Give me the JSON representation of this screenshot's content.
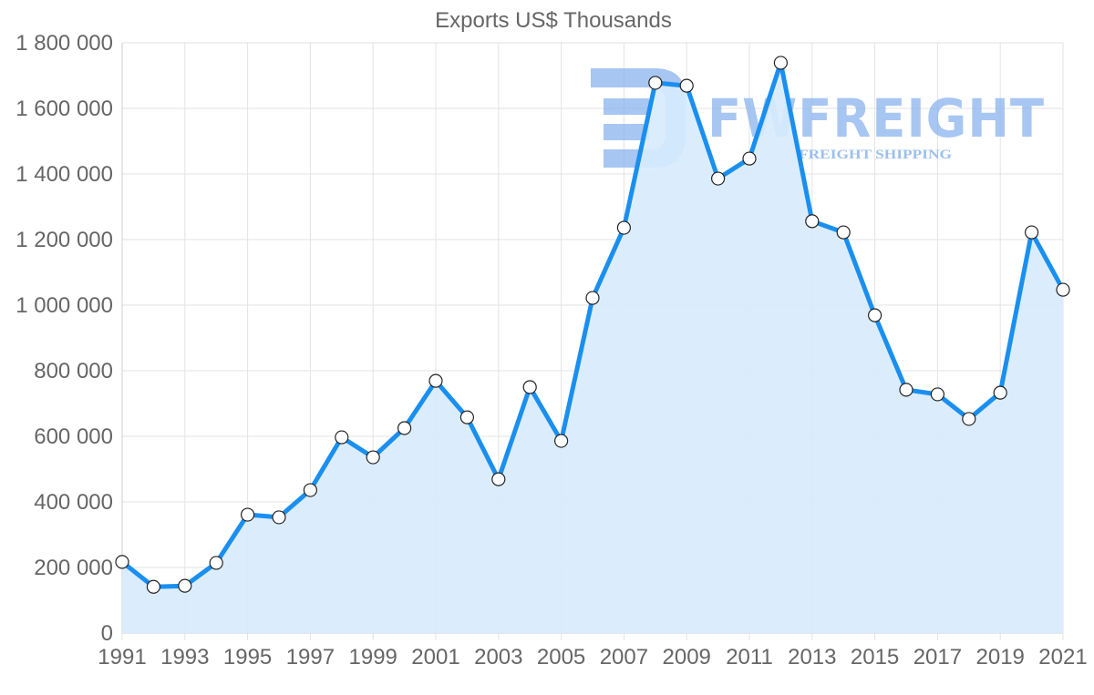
{
  "chart_data": {
    "type": "area",
    "title": "Exports US$ Thousands",
    "xlabel": "",
    "ylabel": "",
    "ylim": [
      0,
      1800000
    ],
    "grid": true,
    "legend": null,
    "y_ticks": [
      0,
      200000,
      400000,
      600000,
      800000,
      1000000,
      1200000,
      1400000,
      1600000,
      1800000
    ],
    "y_tick_labels": [
      "0",
      "200 000",
      "400 000",
      "600 000",
      "800 000",
      "1 000 000",
      "1 200 000",
      "1 400 000",
      "1 600 000",
      "1 800 000"
    ],
    "x_tick_labels": [
      "1991",
      "1993",
      "1995",
      "1997",
      "1999",
      "2001",
      "2003",
      "2005",
      "2007",
      "2009",
      "2011",
      "2013",
      "2015",
      "2017",
      "2019",
      "2021"
    ],
    "categories": [
      "1991",
      "1992",
      "1993",
      "1994",
      "1995",
      "1996",
      "1997",
      "1998",
      "1999",
      "2000",
      "2001",
      "2002",
      "2003",
      "2004",
      "2005",
      "2006",
      "2007",
      "2008",
      "2009",
      "2010",
      "2011",
      "2012",
      "2013",
      "2014",
      "2015",
      "2016",
      "2017",
      "2018",
      "2019",
      "2020",
      "2021"
    ],
    "series": [
      {
        "name": "Exports US$ Thousands",
        "line_color": "#1a8fef",
        "fill_color": "#d7ebfd",
        "values": [
          217000,
          141000,
          144000,
          214000,
          361000,
          353000,
          436000,
          597000,
          536000,
          625000,
          769000,
          658000,
          469000,
          750000,
          586000,
          1022000,
          1236000,
          1678000,
          1669000,
          1386000,
          1447000,
          1739000,
          1256000,
          1222000,
          969000,
          742000,
          728000,
          653000,
          733000,
          1222000,
          1047000
        ]
      }
    ],
    "watermark": {
      "main": "FWFREIGHT",
      "sub": "FREIGHT SHIPPING"
    }
  }
}
